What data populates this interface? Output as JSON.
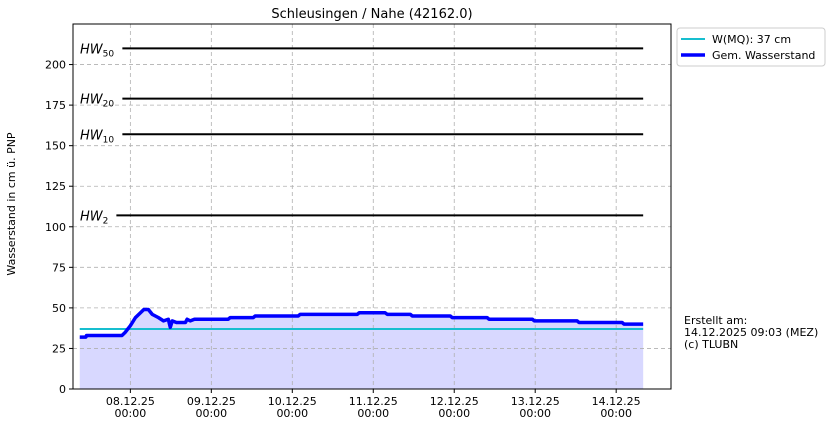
{
  "chart_data": {
    "type": "line",
    "title": "Schleusingen / Nahe (42162.0)",
    "y_label": "Wasserstand in cm ü. PNP",
    "xlim": [
      "07.12.25 07:00",
      "14.12.25 16:15"
    ],
    "ylim": [
      0,
      225
    ],
    "yticks": [
      0,
      25,
      50,
      75,
      100,
      125,
      150,
      175,
      200
    ],
    "xticks": [
      {
        "value": "08.12.25 00:00",
        "label": [
          "08.12.25",
          "00:00"
        ]
      },
      {
        "value": "09.12.25 00:00",
        "label": [
          "09.12.25",
          "00:00"
        ]
      },
      {
        "value": "10.12.25 00:00",
        "label": [
          "10.12.25",
          "00:00"
        ]
      },
      {
        "value": "11.12.25 00:00",
        "label": [
          "11.12.25",
          "00:00"
        ]
      },
      {
        "value": "12.12.25 00:00",
        "label": [
          "12.12.25",
          "00:00"
        ]
      },
      {
        "value": "13.12.25 00:00",
        "label": [
          "13.12.25",
          "00:00"
        ]
      },
      {
        "value": "14.12.25 00:00",
        "label": [
          "14.12.25",
          "00:00"
        ]
      }
    ],
    "grid": true,
    "legend": "upper right outside",
    "series": [
      {
        "name": "W(MQ): 37 cm",
        "color": "#17becf",
        "width": 2,
        "x": [
          "07.12.25 09:00",
          "14.12.25 08:00"
        ],
        "values": [
          37,
          37
        ]
      },
      {
        "name": "Gem. Wasserstand",
        "color": "#0000ff",
        "width": 3.5,
        "fill": "#d8d8ff",
        "x": [
          "07.12.25 09:00",
          "07.12.25 10:50",
          "07.12.25 11:00",
          "07.12.25 21:30",
          "07.12.25 22:30",
          "08.12.25 00:00",
          "08.12.25 01:30",
          "08.12.25 03:00",
          "08.12.25 04:00",
          "08.12.25 05:20",
          "08.12.25 06:30",
          "08.12.25 08:20",
          "08.12.25 09:50",
          "08.12.25 11:15",
          "08.12.25 11:50",
          "08.12.25 12:25",
          "08.12.25 13:40",
          "08.12.25 16:20",
          "08.12.25 16:50",
          "08.12.25 17:45",
          "08.12.25 19:00",
          "09.12.25 05:00",
          "09.12.25 05:35",
          "09.12.25 12:25",
          "09.12.25 13:00",
          "10.12.25 01:45",
          "10.12.25 02:20",
          "10.12.25 19:15",
          "10.12.25 19:50",
          "11.12.25 03:30",
          "11.12.25 04:10",
          "11.12.25 11:00",
          "11.12.25 11:35",
          "11.12.25 22:50",
          "11.12.25 23:25",
          "12.12.25 09:45",
          "12.12.25 10:20",
          "12.12.25 23:10",
          "12.12.25 23:45",
          "13.12.25 12:25",
          "13.12.25 13:00",
          "14.12.25 01:45",
          "14.12.25 02:20",
          "14.12.25 08:00"
        ],
        "values": [
          32,
          32,
          33,
          33,
          35,
          39,
          44,
          47,
          49,
          49,
          46,
          44,
          42,
          43,
          38,
          42,
          41,
          41,
          43,
          42,
          43,
          43,
          44,
          44,
          45,
          45,
          46,
          46,
          47,
          47,
          46,
          46,
          45,
          45,
          44,
          44,
          43,
          43,
          42,
          42,
          41,
          41,
          40,
          40
        ]
      }
    ],
    "thresholds": [
      {
        "label": "HW",
        "sub": "50",
        "value": 210
      },
      {
        "label": "HW",
        "sub": "20",
        "value": 179
      },
      {
        "label": "HW",
        "sub": "10",
        "value": 157
      },
      {
        "label": "HW",
        "sub": "2",
        "value": 107
      }
    ],
    "annotation": [
      "Erstellt am:",
      "14.12.2025 09:03 (MEZ)",
      "(c) TLUBN"
    ]
  }
}
